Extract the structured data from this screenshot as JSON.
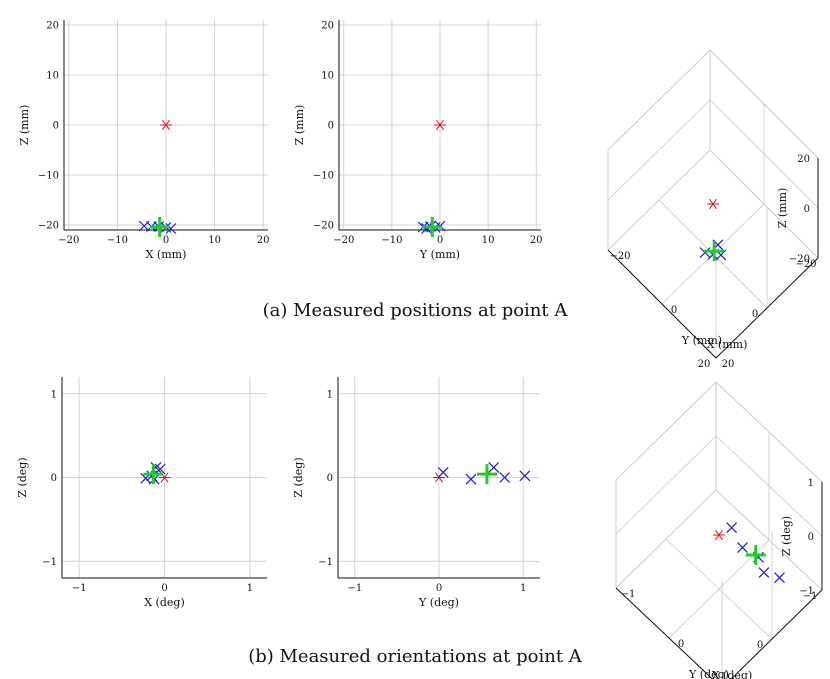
{
  "colors": {
    "reference": "#e8101c",
    "measured": "#1a1ae6",
    "mean": "#22cc22",
    "grid": "#c8c8c8"
  },
  "captions": {
    "a": "(a) Measured positions at point A",
    "b": "(b) Measured orientations at point A"
  },
  "chart_data": [
    {
      "type": "scatter",
      "panel": "a-xz",
      "xlabel": "X (mm)",
      "ylabel": "Z (mm)",
      "xlim": [
        -21,
        21
      ],
      "ylim": [
        -21,
        21
      ],
      "xticks": [
        -20,
        -10,
        0,
        10,
        20
      ],
      "yticks": [
        -20,
        -10,
        0,
        10,
        20
      ],
      "grid": true,
      "reference": [
        {
          "x": 0,
          "y": 0
        }
      ],
      "measured": [
        {
          "x": -4.5,
          "y": -20.2
        },
        {
          "x": -3,
          "y": -20.3
        },
        {
          "x": -1.5,
          "y": -20.3
        },
        {
          "x": 0,
          "y": -20.5
        },
        {
          "x": 1,
          "y": -20.7
        }
      ],
      "mean": [
        {
          "x": -1.3,
          "y": -20.4
        }
      ]
    },
    {
      "type": "scatter",
      "panel": "a-yz",
      "xlabel": "Y (mm)",
      "ylabel": "Z (mm)",
      "xlim": [
        -21,
        21
      ],
      "ylim": [
        -21,
        21
      ],
      "xticks": [
        -20,
        -10,
        0,
        10,
        20
      ],
      "yticks": [
        -20,
        -10,
        0,
        10,
        20
      ],
      "grid": true,
      "reference": [
        {
          "x": 0,
          "y": 0
        }
      ],
      "measured": [
        {
          "x": -3.5,
          "y": -20.4
        },
        {
          "x": -2,
          "y": -20.3
        },
        {
          "x": -1,
          "y": -20.5
        },
        {
          "x": 0,
          "y": -20.2
        },
        {
          "x": -2.8,
          "y": -20.7
        }
      ],
      "mean": [
        {
          "x": -1.6,
          "y": -20.4
        }
      ]
    },
    {
      "type": "scatter",
      "panel": "a-3d",
      "xlabel": "X (mm)",
      "ylabel": "Y (mm)",
      "zlabel": "Z (mm)",
      "xlim": [
        -20,
        20
      ],
      "ylim": [
        -20,
        20
      ],
      "zlim": [
        -20,
        20
      ],
      "xticks": [
        -20,
        0,
        20
      ],
      "yticks": [
        -20,
        0,
        20
      ],
      "zticks": [
        -20,
        0,
        20
      ],
      "grid": true,
      "reference": [
        {
          "x": 0,
          "y": 0,
          "z": 0
        }
      ],
      "measured": [
        {
          "x": -3,
          "y": -1,
          "z": -20.4
        },
        {
          "x": 0,
          "y": 0,
          "z": -20.2
        },
        {
          "x": 1,
          "y": -2,
          "z": -20.6
        },
        {
          "x": -1.5,
          "y": 1.5,
          "z": -20.3
        }
      ],
      "mean": [
        {
          "x": -1,
          "y": -0.5,
          "z": -20.4
        }
      ]
    },
    {
      "type": "scatter",
      "panel": "b-xz",
      "xlabel": "X (deg)",
      "ylabel": "Z (deg)",
      "xlim": [
        -1.2,
        1.2
      ],
      "ylim": [
        -1.2,
        1.2
      ],
      "xticks": [
        -1,
        0,
        1
      ],
      "yticks": [
        -1,
        0,
        1
      ],
      "grid": true,
      "reference": [
        {
          "x": 0,
          "y": 0
        }
      ],
      "measured": [
        {
          "x": -0.22,
          "y": -0.01
        },
        {
          "x": -0.15,
          "y": 0.02
        },
        {
          "x": -0.1,
          "y": 0.12
        },
        {
          "x": -0.05,
          "y": 0.1
        },
        {
          "x": -0.12,
          "y": -0.02
        }
      ],
      "mean": [
        {
          "x": -0.13,
          "y": 0.04
        }
      ]
    },
    {
      "type": "scatter",
      "panel": "b-yz",
      "xlabel": "Y (deg)",
      "ylabel": "Z (deg)",
      "xlim": [
        -1.2,
        1.2
      ],
      "ylim": [
        -1.2,
        1.2
      ],
      "xticks": [
        -1,
        0,
        1
      ],
      "yticks": [
        -1,
        0,
        1
      ],
      "grid": true,
      "reference": [
        {
          "x": 0,
          "y": 0
        }
      ],
      "measured": [
        {
          "x": 0.05,
          "y": 0.06
        },
        {
          "x": 0.38,
          "y": -0.02
        },
        {
          "x": 0.65,
          "y": 0.12
        },
        {
          "x": 0.78,
          "y": 0.0
        },
        {
          "x": 1.02,
          "y": 0.02
        }
      ],
      "mean": [
        {
          "x": 0.57,
          "y": 0.04
        }
      ]
    },
    {
      "type": "scatter",
      "panel": "b-3d",
      "xlabel": "X (deg)",
      "ylabel": "Y (deg)",
      "zlabel": "Z (deg)",
      "xlim": [
        -1,
        1
      ],
      "ylim": [
        -1,
        1
      ],
      "zlim": [
        -1,
        1
      ],
      "xticks": [
        -1,
        0,
        1
      ],
      "yticks": [
        -1,
        0,
        1
      ],
      "zticks": [
        -1,
        0,
        1
      ],
      "grid": true,
      "reference": [
        {
          "x": 0,
          "y": 0,
          "z": 0
        }
      ],
      "measured": [
        {
          "x": -0.2,
          "y": 0.05,
          "z": 0.0
        },
        {
          "x": -0.1,
          "y": 0.35,
          "z": 0.0
        },
        {
          "x": -0.1,
          "y": 0.65,
          "z": 0.1
        },
        {
          "x": -0.05,
          "y": 0.8,
          "z": 0.0
        },
        {
          "x": -0.15,
          "y": 1.0,
          "z": 0.0
        }
      ],
      "mean": [
        {
          "x": -0.13,
          "y": 0.57,
          "z": 0.04
        }
      ]
    }
  ]
}
